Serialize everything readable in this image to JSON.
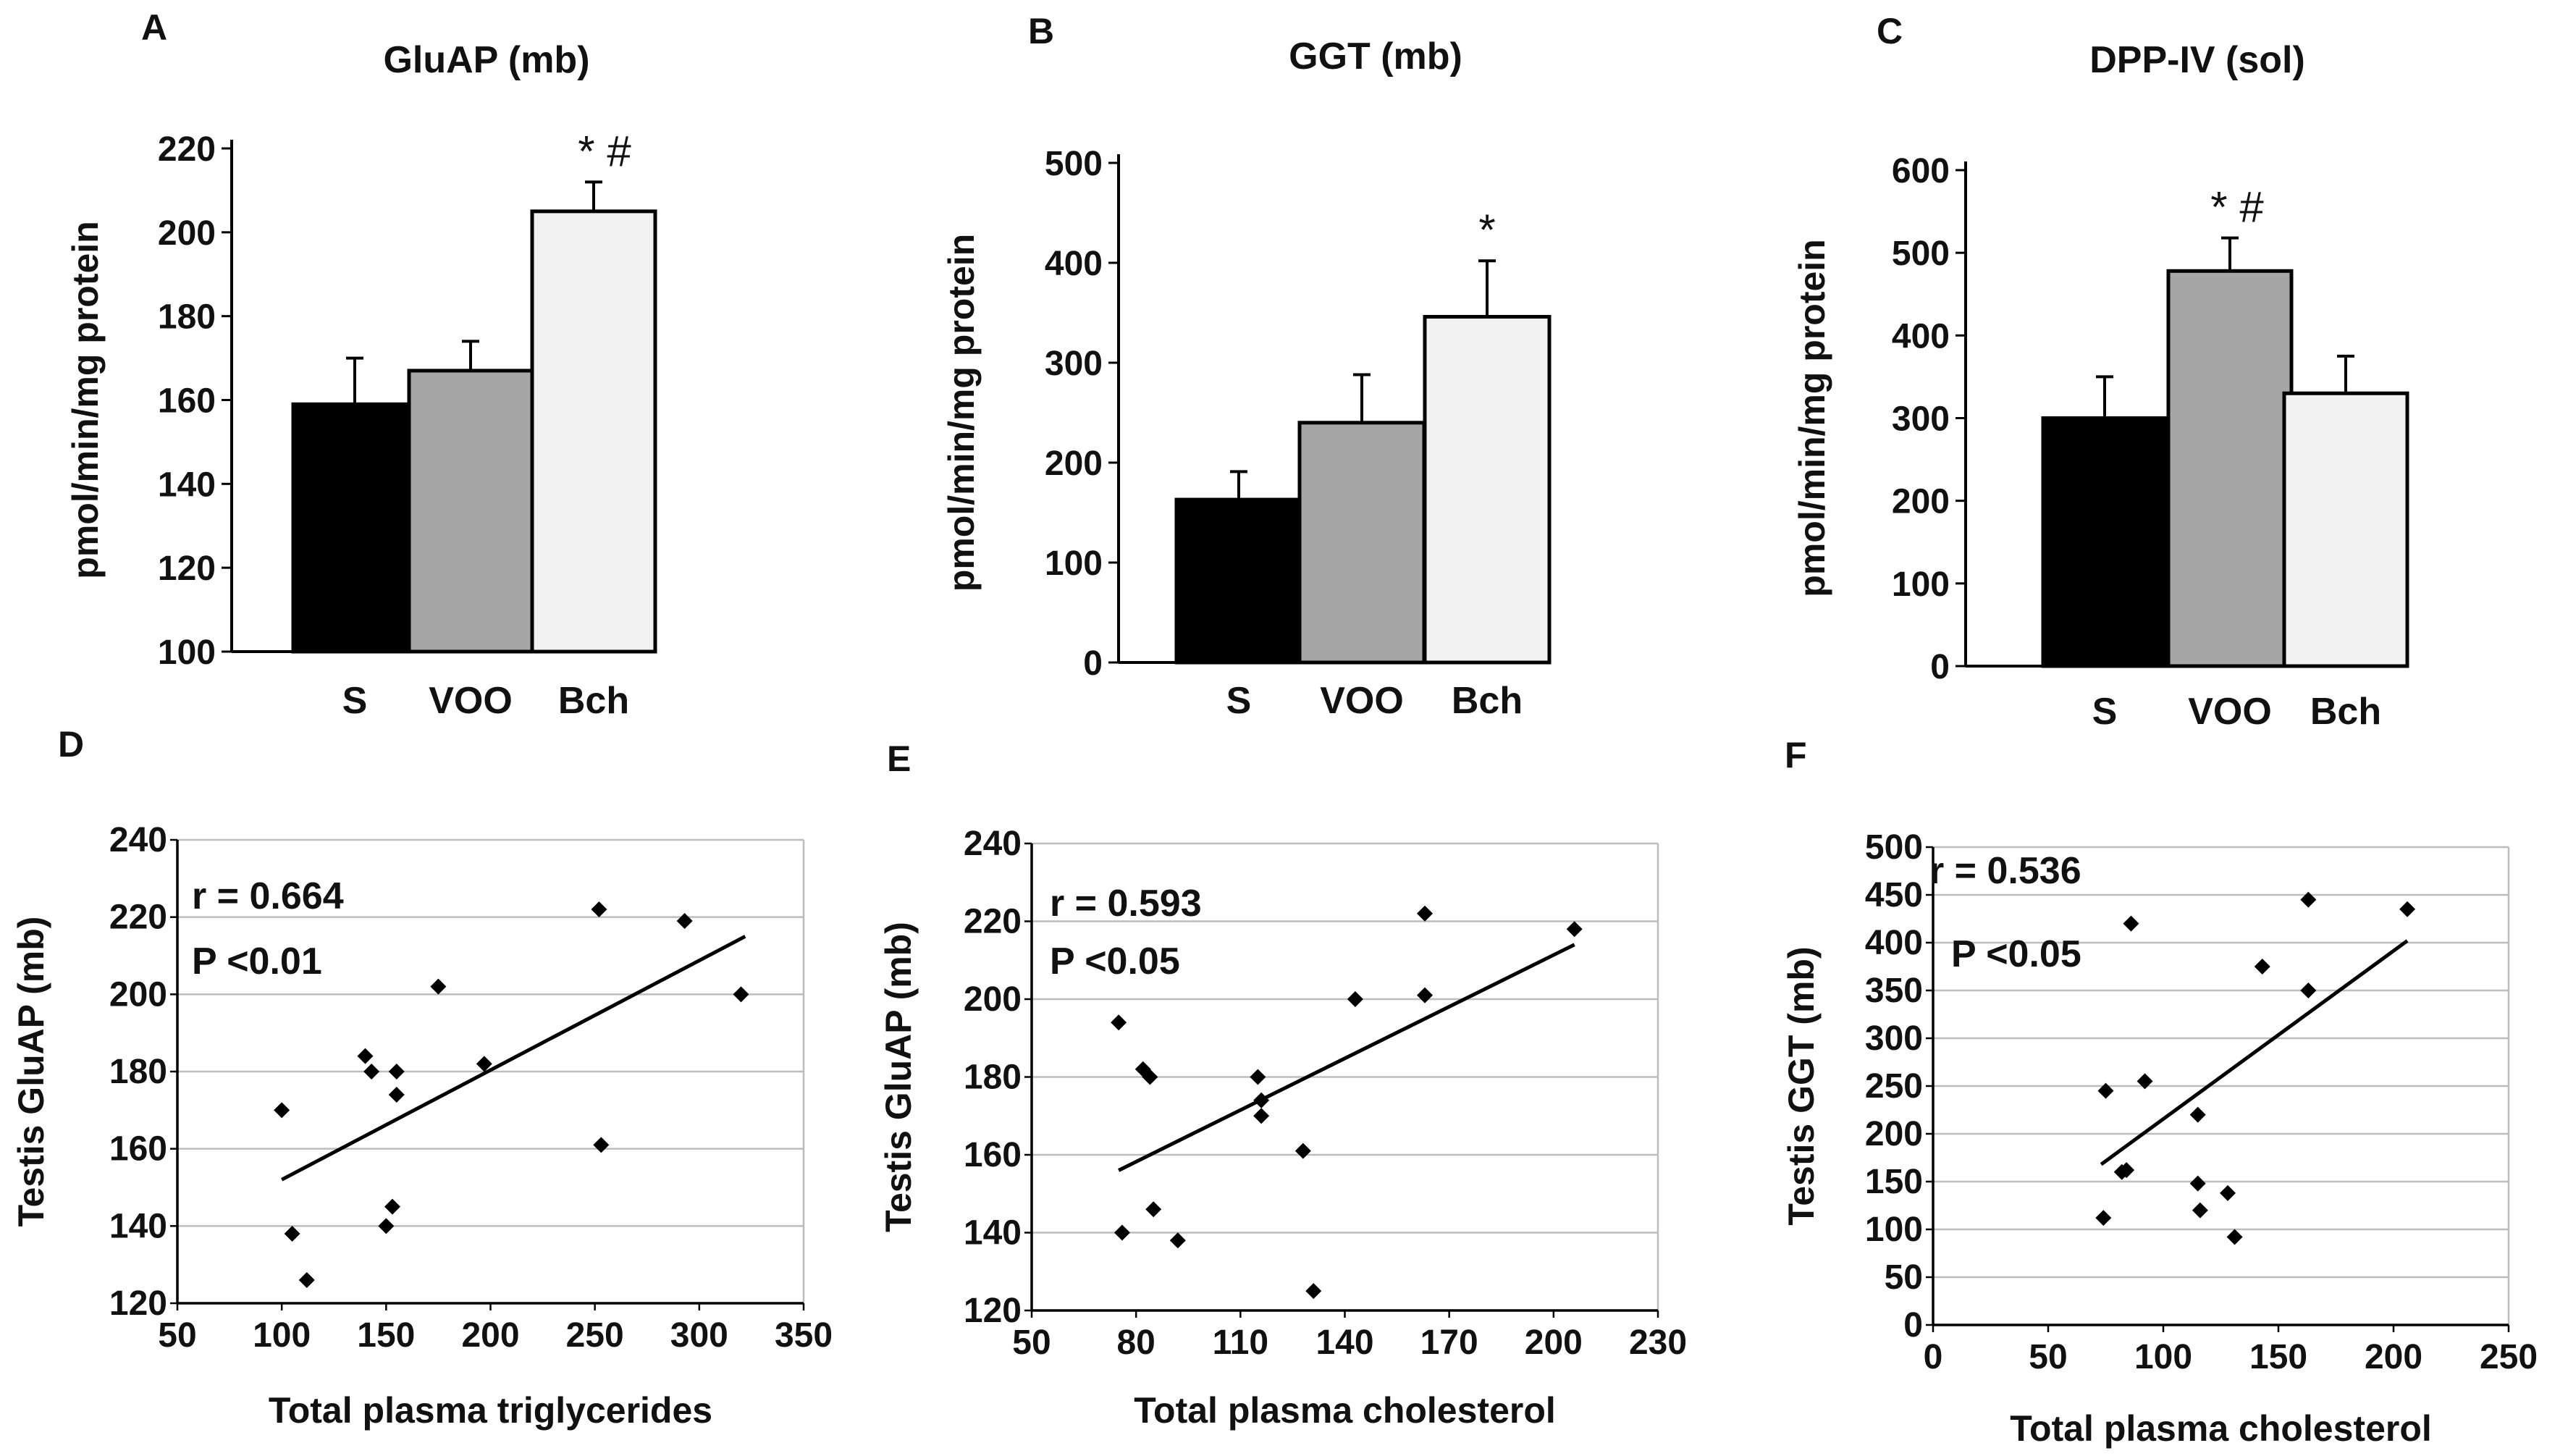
{
  "chart_data": [
    {
      "type": "bar",
      "letter": "A",
      "title": "GluAP (mb)",
      "ylabel": "pmol/min/mg protein",
      "ylim": [
        100,
        220
      ],
      "yticks": [
        "100",
        "120",
        "140",
        "160",
        "180",
        "200",
        "220"
      ],
      "categories": [
        "S",
        "VOO",
        "Bch"
      ],
      "values": [
        159,
        167,
        205
      ],
      "errors": [
        11,
        7,
        7
      ],
      "annotations": [
        "",
        "",
        "* #"
      ],
      "colors": [
        "#000000",
        "#a6a6a6",
        "#f2f2f2"
      ]
    },
    {
      "type": "bar",
      "letter": "B",
      "title": "GGT (mb)",
      "ylabel": "pmol/min/mg protein",
      "ylim": [
        0,
        500
      ],
      "yticks": [
        "0",
        "100",
        "200",
        "300",
        "400",
        "500"
      ],
      "categories": [
        "S",
        "VOO",
        "Bch"
      ],
      "values": [
        163,
        240,
        346
      ],
      "errors": [
        28,
        48,
        56
      ],
      "annotations": [
        "",
        "",
        "*"
      ],
      "colors": [
        "#000000",
        "#a6a6a6",
        "#f2f2f2"
      ]
    },
    {
      "type": "bar",
      "letter": "C",
      "title": "DPP-IV (sol)",
      "ylabel": "pmol/min/mg protein",
      "ylim": [
        0,
        600
      ],
      "yticks": [
        "0",
        "100",
        "200",
        "300",
        "400",
        "500",
        "600"
      ],
      "categories": [
        "S",
        "VOO",
        "Bch"
      ],
      "values": [
        300,
        478,
        330
      ],
      "errors": [
        50,
        40,
        45
      ],
      "annotations": [
        "",
        "* #",
        ""
      ],
      "colors": [
        "#000000",
        "#a6a6a6",
        "#f2f2f2"
      ]
    },
    {
      "type": "scatter",
      "letter": "D",
      "xlabel": "Total plasma triglycerides",
      "ylabel": "Testis GluAP (mb)",
      "xlim": [
        50,
        350
      ],
      "ylim": [
        120,
        240
      ],
      "xticks": [
        "50",
        "100",
        "150",
        "200",
        "250",
        "300",
        "350"
      ],
      "yticks": [
        "120",
        "140",
        "160",
        "180",
        "200",
        "220",
        "240"
      ],
      "r_text": "r = 0.664",
      "p_text": "P <0.01",
      "x": [
        100,
        105,
        112,
        140,
        143,
        150,
        153,
        155,
        155,
        175,
        197,
        252,
        253,
        293,
        320
      ],
      "y": [
        170,
        138,
        126,
        184,
        180,
        140,
        145,
        180,
        174,
        202,
        182,
        222,
        161,
        219,
        200
      ],
      "trendline": [
        [
          100,
          152
        ],
        [
          322,
          215
        ]
      ]
    },
    {
      "type": "scatter",
      "letter": "E",
      "xlabel": "Total plasma cholesterol",
      "ylabel": "Testis GluAP (mb)",
      "xlim": [
        50,
        230
      ],
      "ylim": [
        120,
        240
      ],
      "xticks": [
        "50",
        "80",
        "110",
        "140",
        "170",
        "200",
        "230"
      ],
      "yticks": [
        "120",
        "140",
        "160",
        "180",
        "200",
        "220",
        "240"
      ],
      "r_text": "r = 0.593",
      "p_text": "P <0.05",
      "x": [
        75,
        76,
        82,
        84,
        85,
        92,
        115,
        116,
        116,
        128,
        131,
        143,
        163,
        163,
        206
      ],
      "y": [
        194,
        140,
        182,
        180,
        146,
        138,
        180,
        174,
        170,
        161,
        125,
        200,
        222,
        201,
        218
      ],
      "trendline": [
        [
          75,
          156
        ],
        [
          206,
          214
        ]
      ]
    },
    {
      "type": "scatter",
      "letter": "F",
      "xlabel": "Total plasma cholesterol",
      "ylabel": "Testis GGT (mb)",
      "xlim": [
        0,
        250
      ],
      "ylim": [
        0,
        500
      ],
      "xticks": [
        "0",
        "50",
        "100",
        "150",
        "200",
        "250"
      ],
      "yticks": [
        "0",
        "50",
        "100",
        "150",
        "200",
        "250",
        "300",
        "350",
        "400",
        "450",
        "500"
      ],
      "r_text": "r = 0.536",
      "p_text": "P <0.05",
      "x": [
        74,
        75,
        82,
        84,
        86,
        92,
        115,
        115,
        116,
        128,
        131,
        143,
        163,
        163,
        206
      ],
      "y": [
        112,
        245,
        160,
        162,
        420,
        255,
        220,
        148,
        120,
        138,
        92,
        375,
        350,
        445,
        435
      ],
      "trendline": [
        [
          73,
          168
        ],
        [
          206,
          402
        ]
      ]
    }
  ]
}
